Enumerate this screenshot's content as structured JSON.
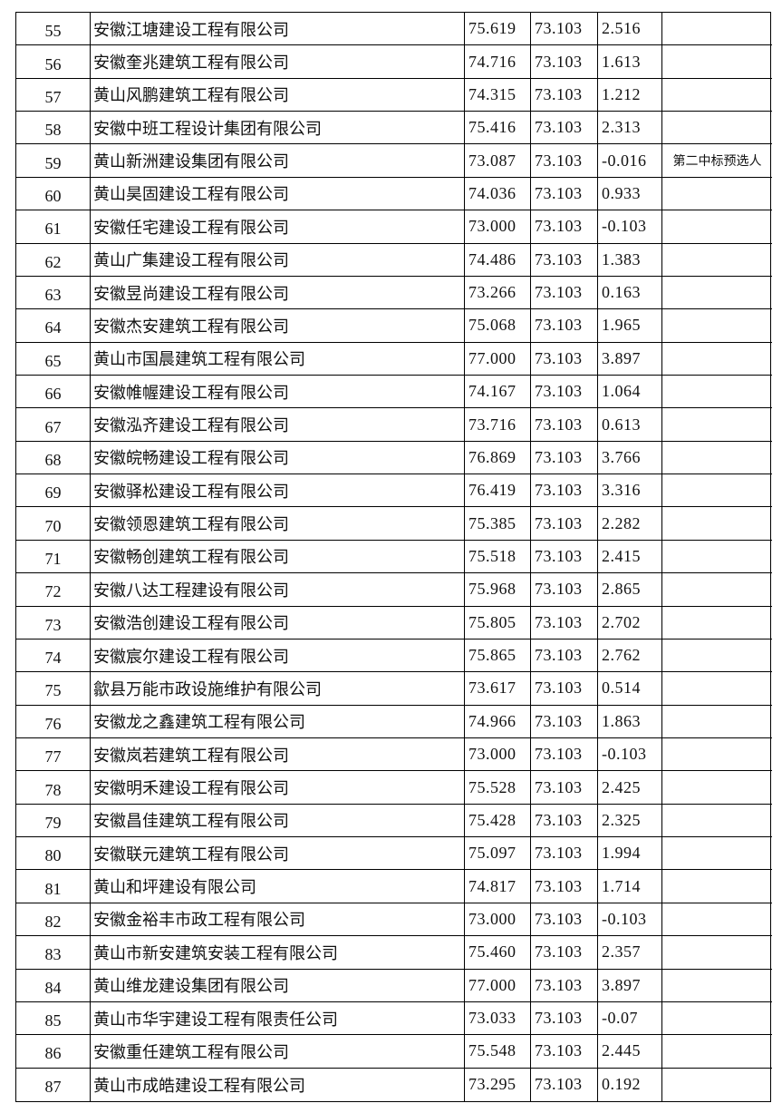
{
  "table": {
    "rows": [
      [
        "55",
        "安徽江塘建设工程有限公司",
        "75.619",
        "73.103",
        "2.516"
      ],
      [
        "56",
        "安徽奎兆建筑工程有限公司",
        "74.716",
        "73.103",
        "1.613"
      ],
      [
        "57",
        "黄山风鹏建筑工程有限公司",
        "74.315",
        "73.103",
        "1.212"
      ],
      [
        "58",
        "安徽中班工程设计集团有限公司",
        "75.416",
        "73.103",
        "2.313"
      ],
      [
        "59",
        "黄山新洲建设集团有限公司",
        "73.087",
        "73.103",
        "-0.016",
        "第二中标预选人"
      ],
      [
        "60",
        "黄山昊固建设工程有限公司",
        "74.036",
        "73.103",
        "0.933"
      ],
      [
        "61",
        "安徽任宅建设工程有限公司",
        "73.000",
        "73.103",
        "-0.103"
      ],
      [
        "62",
        "黄山广集建设工程有限公司",
        "74.486",
        "73.103",
        "1.383"
      ],
      [
        "63",
        "安徽昱尚建设工程有限公司",
        "73.266",
        "73.103",
        "0.163"
      ],
      [
        "64",
        "安徽杰安建筑工程有限公司",
        "75.068",
        "73.103",
        "1.965"
      ],
      [
        "65",
        "黄山市国晨建筑工程有限公司",
        "77.000",
        "73.103",
        "3.897"
      ],
      [
        "66",
        "安徽帷幄建设工程有限公司",
        "74.167",
        "73.103",
        "1.064"
      ],
      [
        "67",
        "安徽泓齐建设工程有限公司",
        "73.716",
        "73.103",
        "0.613"
      ],
      [
        "68",
        "安徽皖畅建设工程有限公司",
        "76.869",
        "73.103",
        "3.766"
      ],
      [
        "69",
        "安徽驿松建设工程有限公司",
        "76.419",
        "73.103",
        "3.316"
      ],
      [
        "70",
        "安徽领恩建筑工程有限公司",
        "75.385",
        "73.103",
        "2.282"
      ],
      [
        "71",
        "安徽畅创建筑工程有限公司",
        "75.518",
        "73.103",
        "2.415"
      ],
      [
        "72",
        "安徽八达工程建设有限公司",
        "75.968",
        "73.103",
        "2.865"
      ],
      [
        "73",
        "安徽浩创建设工程有限公司",
        "75.805",
        "73.103",
        "2.702"
      ],
      [
        "74",
        "安徽宸尔建设工程有限公司",
        "75.865",
        "73.103",
        "2.762"
      ],
      [
        "75",
        "歙县万能市政设施维护有限公司",
        "73.617",
        "73.103",
        "0.514"
      ],
      [
        "76",
        "安徽龙之鑫建筑工程有限公司",
        "74.966",
        "73.103",
        "1.863"
      ],
      [
        "77",
        "安徽岚若建筑工程有限公司",
        "73.000",
        "73.103",
        "-0.103"
      ],
      [
        "78",
        "安徽明禾建设工程有限公司",
        "75.528",
        "73.103",
        "2.425"
      ],
      [
        "79",
        "安徽昌佳建筑工程有限公司",
        "75.428",
        "73.103",
        "2.325"
      ],
      [
        "80",
        "安徽联元建筑工程有限公司",
        "75.097",
        "73.103",
        "1.994"
      ],
      [
        "81",
        "黄山和坪建设有限公司",
        "74.817",
        "73.103",
        "1.714"
      ],
      [
        "82",
        "安徽金裕丰市政工程有限公司",
        "73.000",
        "73.103",
        "-0.103"
      ],
      [
        "83",
        "黄山市新安建筑安装工程有限公司",
        "75.460",
        "73.103",
        "2.357"
      ],
      [
        "84",
        "黄山维龙建设集团有限公司",
        "77.000",
        "73.103",
        "3.897"
      ],
      [
        "85",
        "黄山市华宇建设工程有限责任公司",
        "73.033",
        "73.103",
        "-0.07"
      ],
      [
        "86",
        "安徽重任建筑工程有限公司",
        "75.548",
        "73.103",
        "2.445"
      ],
      [
        "87",
        "黄山市成皓建设工程有限公司",
        "73.295",
        "73.103",
        "0.192"
      ]
    ]
  }
}
